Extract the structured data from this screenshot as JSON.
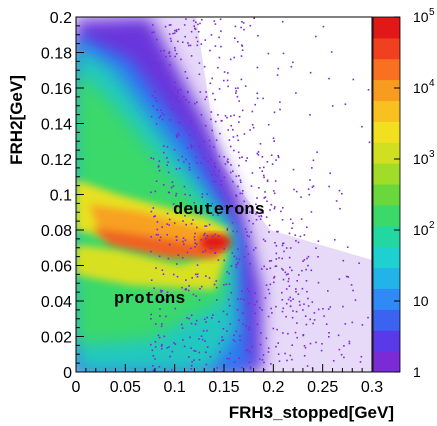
{
  "chart_data": {
    "type": "heatmap",
    "title": "",
    "xlabel": "FRH3_stopped[GeV]",
    "ylabel": "FRH2[GeV]",
    "xlim": [
      0,
      0.3
    ],
    "ylim": [
      0,
      0.2
    ],
    "x_ticks": [
      "0",
      "0.05",
      "0.1",
      "0.15",
      "0.2",
      "0.25",
      "0.3"
    ],
    "y_ticks": [
      "0",
      "0.02",
      "0.04",
      "0.06",
      "0.08",
      "0.1",
      "0.12",
      "0.14",
      "0.16",
      "0.18",
      "0.2"
    ],
    "colorbar": {
      "scale": "log",
      "range": [
        1,
        100000
      ],
      "tick_labels": [
        {
          "base": "1",
          "exp": ""
        },
        {
          "base": "10",
          "exp": ""
        },
        {
          "base": "10",
          "exp": "2"
        },
        {
          "base": "10",
          "exp": "3"
        },
        {
          "base": "10",
          "exp": "4"
        },
        {
          "base": "10",
          "exp": "5"
        }
      ],
      "palette": [
        "#7a2bd6",
        "#5a3ae8",
        "#3b63f0",
        "#2f8af5",
        "#22b3e8",
        "#1ed0d0",
        "#22d8a0",
        "#3bd86a",
        "#6ad83a",
        "#a0dc28",
        "#d0e020",
        "#f2e020",
        "#f8c020",
        "#f89c20",
        "#f87020",
        "#f04020",
        "#e01818"
      ]
    },
    "bands": [
      {
        "label": "deuterons",
        "points": [
          [
            0.005,
            0.097
          ],
          [
            0.06,
            0.088
          ],
          [
            0.13,
            0.075
          ]
        ]
      },
      {
        "label": "protons",
        "points": [
          [
            0.005,
            0.085
          ],
          [
            0.06,
            0.073
          ],
          [
            0.13,
            0.072
          ]
        ]
      }
    ],
    "annotations": [
      "deuterons",
      "protons"
    ]
  }
}
